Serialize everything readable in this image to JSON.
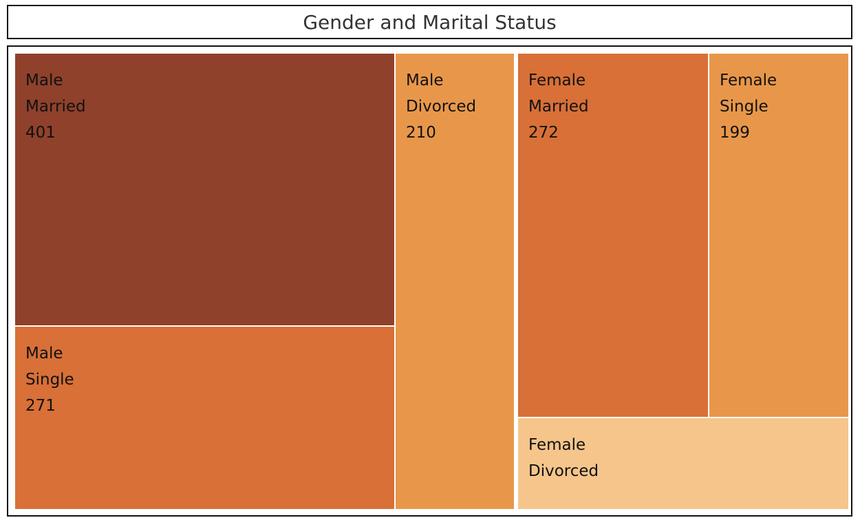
{
  "chart_data": {
    "type": "treemap",
    "title": "Gender and Marital Status",
    "color_scale": [
      "#f5c58b",
      "#e8974a",
      "#d87037",
      "#8f412b"
    ],
    "tiles": [
      {
        "gender": "Male",
        "status": "Married",
        "value": 401,
        "color": "#8f412b"
      },
      {
        "gender": "Male",
        "status": "Single",
        "value": 271,
        "color": "#d87037"
      },
      {
        "gender": "Male",
        "status": "Divorced",
        "value": 210,
        "color": "#e8974a"
      },
      {
        "gender": "Female",
        "status": "Married",
        "value": 272,
        "color": "#d87037"
      },
      {
        "gender": "Female",
        "status": "Single",
        "value": 199,
        "color": "#e8974a"
      },
      {
        "gender": "Female",
        "status": "Divorced",
        "value": null,
        "color": "#f5c58b"
      }
    ]
  }
}
